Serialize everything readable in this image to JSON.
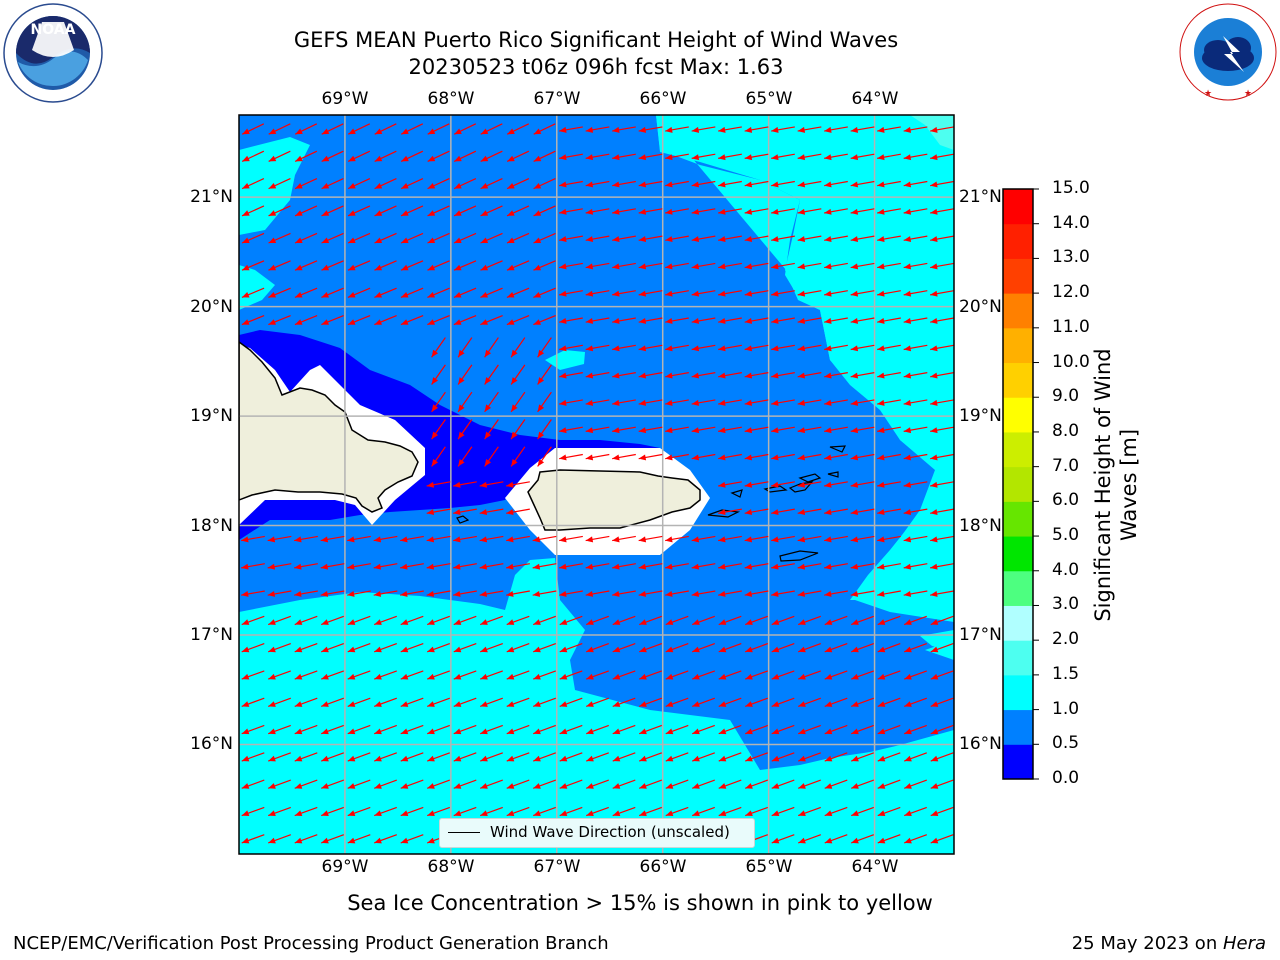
{
  "header": {
    "title_line1": "GEFS MEAN Puerto Rico Significant Height of Wind Waves",
    "title_line2": "20230523 t06z 096h fcst   Max: 1.63"
  },
  "logos": {
    "left": "NOAA logo",
    "left_text": "NOAA",
    "left_ring": "NATIONAL OCEANIC AND ATMOSPHERIC ADMINISTRATION · U.S. DEPARTMENT OF COMMERCE",
    "right": "National Weather Service logo",
    "right_ring": "NATIONAL WEATHER SERVICE"
  },
  "map": {
    "lon_labels": [
      "69°W",
      "68°W",
      "67°W",
      "66°W",
      "65°W",
      "64°W"
    ],
    "lat_labels": [
      "21°N",
      "20°N",
      "19°N",
      "18°N",
      "17°N",
      "16°N"
    ],
    "lon_range": [
      -70.0,
      -63.25
    ],
    "lat_range": [
      15.0,
      21.75
    ],
    "grid": true,
    "arrow_color": "#ff0000",
    "land_color": "#efefdc",
    "legend_label": "Wind Wave Direction (unscaled)",
    "legend_placement": "bottom-center"
  },
  "colorbar": {
    "label_line1": "Significant Height of Wind",
    "label_line2": "Waves [m]",
    "ticks": [
      "15.0",
      "14.0",
      "13.0",
      "12.0",
      "11.0",
      "10.0",
      "9.0",
      "8.0",
      "7.0",
      "6.0",
      "5.0",
      "4.0",
      "3.0",
      "2.0",
      "1.5",
      "1.0",
      "0.5",
      "0.0"
    ],
    "colors_bottom_to_top": [
      "#0000ff",
      "#0080ff",
      "#00ffff",
      "#4dfff0",
      "#b0ffff",
      "#4dff80",
      "#00e640",
      "#00e600",
      "#66e600",
      "#b3e600",
      "#ccee00",
      "#e6ee00",
      "#ffff00",
      "#ffd000",
      "#ffb000",
      "#ff8000",
      "#ff6000",
      "#ff4000",
      "#ff2000",
      "#ff0000"
    ]
  },
  "footnote": "Sea Ice Concentration > 15% is shown in pink to yellow",
  "footer": {
    "left": "NCEP/EMC/Verification Post Processing Product Generation Branch",
    "right_date": "25 May 2023 on ",
    "right_host": "Hera"
  }
}
